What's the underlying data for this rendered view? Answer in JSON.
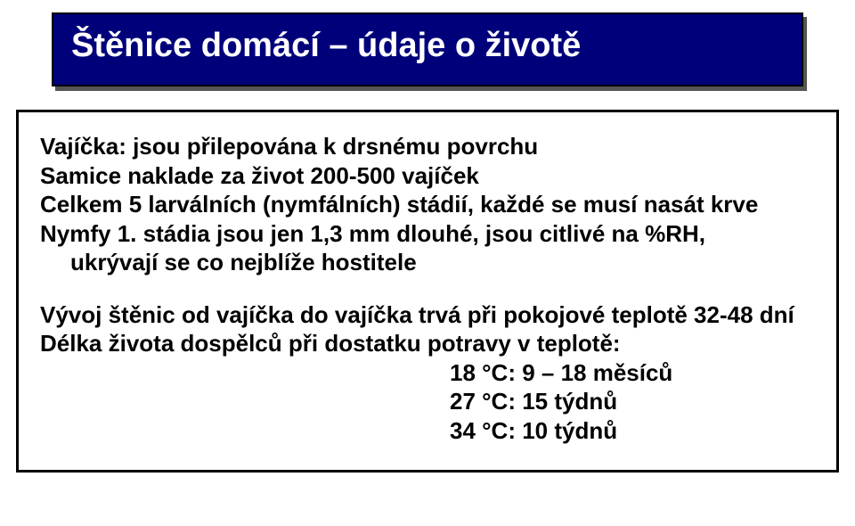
{
  "title": "Štěnice domácí – údaje o životě",
  "lines": {
    "l1": "Vajíčka: jsou přilepována k drsnému povrchu",
    "l2": "Samice naklade za život 200-500  vajíček",
    "l3": "Celkem 5  larválních (nymfálních) stádií, každé se musí nasát krve",
    "l4": "Nymfy 1. stádia jsou jen 1,3 mm dlouhé, jsou citlivé na %RH,",
    "l4b": "ukrývají se co nejblíže hostitele",
    "l5": "Vývoj štěnic od vajíčka do vajíčka trvá při pokojové teplotě 32-48 dní",
    "l6": "Délka života dospělců při dostatku potravy v teplotě:",
    "t1": "18 °C:  9 – 18 měsíců",
    "t2": "27 °C:  15 týdnů",
    "t3": "34 °C:  10 týdnů"
  },
  "colors": {
    "title_bg": "#00007a",
    "title_text": "#ffffff",
    "border": "#000000",
    "body_text": "#000000",
    "shadow": "#555555",
    "page_bg": "#ffffff"
  },
  "fonts": {
    "title_size_pt": 29,
    "body_size_pt": 20,
    "weight": "bold",
    "family": "Arial"
  }
}
